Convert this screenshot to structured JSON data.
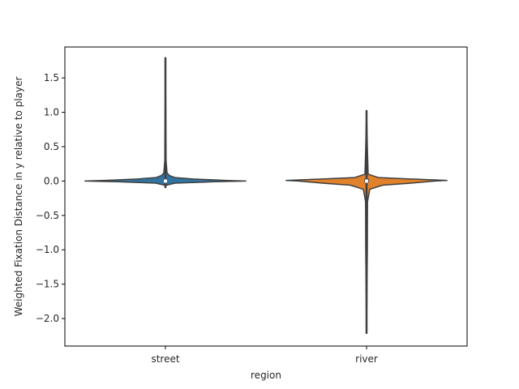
{
  "chart_data": {
    "type": "violin",
    "title": "",
    "xlabel": "region",
    "ylabel": "Weighted Fixation Distance in y relative to player",
    "categories": [
      "street",
      "river"
    ],
    "ylim": [
      -2.4,
      1.95
    ],
    "yticks": [
      1.5,
      1.0,
      0.5,
      0.0,
      -0.5,
      -1.0,
      -1.5,
      -2.0
    ],
    "ytick_labels": [
      "1.5",
      "1.0",
      "0.5",
      "0.0",
      "−0.5",
      "−1.0",
      "−1.5",
      "−2.0"
    ],
    "grid": false,
    "legend": "none",
    "series": [
      {
        "category": "street",
        "color": "#3274a1",
        "min": -0.09,
        "max": 1.79,
        "q1": -0.01,
        "median": 0.0,
        "q3": 0.02,
        "density_profile": [
          [
            -0.09,
            0.0
          ],
          [
            -0.06,
            0.01
          ],
          [
            -0.03,
            0.12
          ],
          [
            -0.01,
            0.6
          ],
          [
            0.0,
            1.0
          ],
          [
            0.01,
            0.75
          ],
          [
            0.03,
            0.35
          ],
          [
            0.05,
            0.12
          ],
          [
            0.08,
            0.05
          ],
          [
            0.12,
            0.02
          ],
          [
            0.3,
            0.008
          ],
          [
            0.8,
            0.005
          ],
          [
            1.79,
            0.0
          ]
        ]
      },
      {
        "category": "river",
        "color": "#e1812c",
        "min": -2.21,
        "max": 1.02,
        "q1": -0.02,
        "median": 0.0,
        "q3": 0.03,
        "density_profile": [
          [
            -2.21,
            0.0
          ],
          [
            -1.0,
            0.01
          ],
          [
            -0.3,
            0.012
          ],
          [
            -0.12,
            0.04
          ],
          [
            -0.06,
            0.2
          ],
          [
            -0.03,
            0.55
          ],
          [
            0.0,
            0.85
          ],
          [
            0.01,
            1.0
          ],
          [
            0.03,
            0.55
          ],
          [
            0.05,
            0.15
          ],
          [
            0.1,
            0.02
          ],
          [
            0.5,
            0.01
          ],
          [
            1.02,
            0.0
          ]
        ]
      }
    ]
  }
}
